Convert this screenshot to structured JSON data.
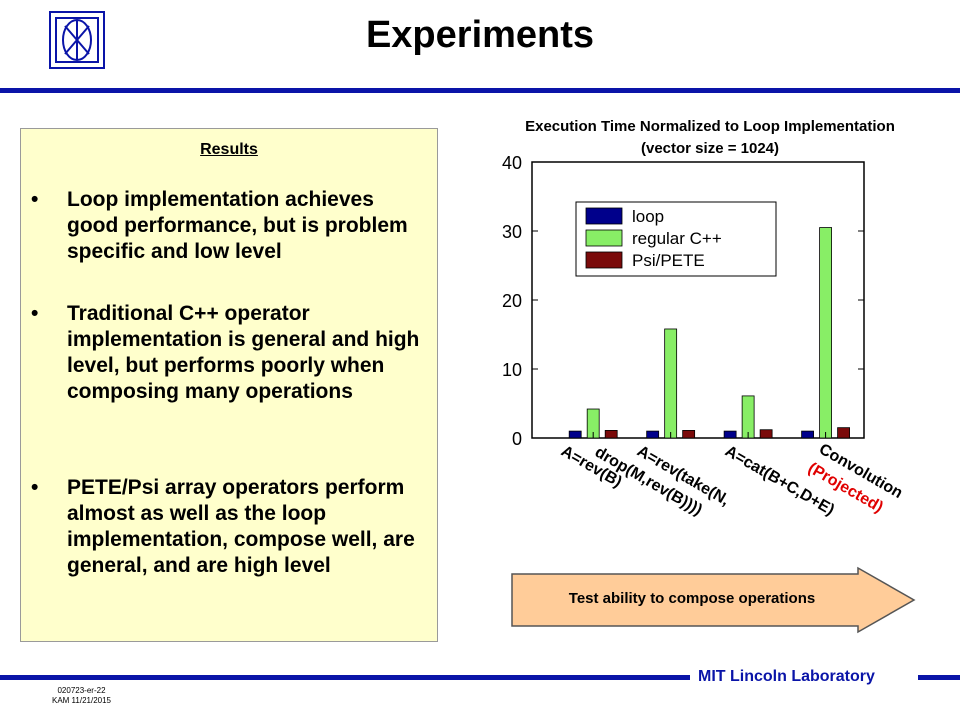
{
  "header": {
    "title": "Experiments"
  },
  "results": {
    "heading": "Results",
    "bullet_symbol": "•",
    "bullets": [
      "Loop implementation achieves good performance, but is problem specific and low level",
      "Traditional C++ operator implementation is general and high level, but performs poorly when composing many operations",
      "PETE/Psi array operators perform almost as well as the loop implementation, compose well, are general, and are high level"
    ]
  },
  "chart_data": {
    "type": "bar",
    "title": "Execution Time Normalized to Loop Implementation",
    "subtitle": "(vector size = 1024)",
    "xlabel": "",
    "ylabel": "",
    "ylim": [
      0,
      40
    ],
    "yticks": [
      0,
      10,
      20,
      30,
      40
    ],
    "grid": false,
    "legend_position": "top-left",
    "categories": [
      "A=rev(B)",
      "A=rev(take(N, drop(M,rev(B))))",
      "A=cat(B+C,D+E)",
      "Convolution (Projected)"
    ],
    "series": [
      {
        "name": "loop",
        "color": "#00008b",
        "values": [
          1,
          1,
          1,
          1
        ]
      },
      {
        "name": "regular C++",
        "color": "#88ee66",
        "values": [
          4.2,
          15.8,
          6.1,
          30.5
        ]
      },
      {
        "name": "Psi/PETE",
        "color": "#7a0a0a",
        "values": [
          1.1,
          1.1,
          1.2,
          1.5
        ]
      }
    ],
    "category_label_colors": [
      "#000000",
      "#000000",
      "#000000",
      "#000000"
    ],
    "projected_note": "(Projected)",
    "projected_color": "#e00000"
  },
  "arrow": {
    "label": "Test ability to compose operations",
    "fill": "#ffcc99"
  },
  "footer": {
    "lab": "MIT Lincoln Laboratory",
    "code_line1": "020723-er-22",
    "code_line2": "KAM 11/21/2015"
  }
}
